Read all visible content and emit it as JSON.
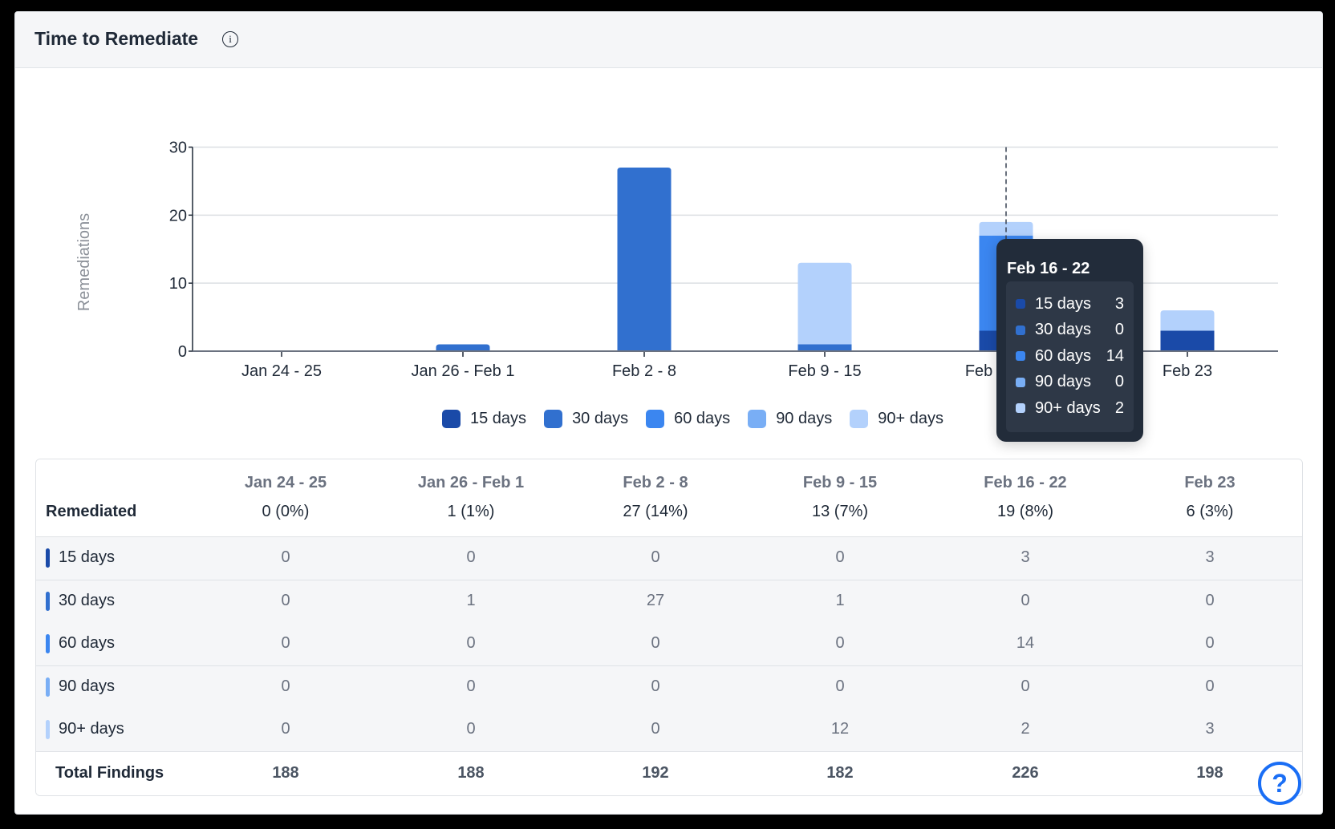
{
  "header": {
    "title": "Time to Remediate",
    "info_icon": "info-icon"
  },
  "chart_data": {
    "type": "bar",
    "stacked": true,
    "title": "",
    "xlabel": "",
    "ylabel": "Remediations",
    "ylim": [
      0,
      30
    ],
    "yticks": [
      "0",
      "10",
      "20",
      "30"
    ],
    "grid": true,
    "legend_placement": "bottom",
    "categories": [
      "Jan 24 - 25",
      "Jan 26 - Feb 1",
      "Feb 2 - 8",
      "Feb 9 - 15",
      "Feb 16 - 22",
      "Feb 23"
    ],
    "series": [
      {
        "name": "15 days",
        "color": "#1a4aa8",
        "values": [
          0,
          0,
          0,
          0,
          3,
          3
        ]
      },
      {
        "name": "30 days",
        "color": "#3170cf",
        "values": [
          0,
          1,
          27,
          1,
          0,
          0
        ]
      },
      {
        "name": "60 days",
        "color": "#3b86f0",
        "values": [
          0,
          0,
          0,
          0,
          14,
          0
        ]
      },
      {
        "name": "90 days",
        "color": "#79aef5",
        "values": [
          0,
          0,
          0,
          0,
          0,
          0
        ]
      },
      {
        "name": "90+ days",
        "color": "#b3d1fc",
        "values": [
          0,
          0,
          0,
          12,
          2,
          3
        ]
      }
    ],
    "hovered_category": "Feb 16 - 22"
  },
  "tooltip": {
    "title": "Feb 16 - 22",
    "rows": [
      {
        "label": "15 days",
        "value": "3"
      },
      {
        "label": "30 days",
        "value": "0"
      },
      {
        "label": "60 days",
        "value": "14"
      },
      {
        "label": "90 days",
        "value": "0"
      },
      {
        "label": "90+ days",
        "value": "2"
      }
    ]
  },
  "table": {
    "row_header": "Remediated",
    "columns": [
      {
        "label": "Jan 24 - 25",
        "remediated": "0 (0%)"
      },
      {
        "label": "Jan 26 - Feb 1",
        "remediated": "1 (1%)"
      },
      {
        "label": "Feb 2 - 8",
        "remediated": "27 (14%)"
      },
      {
        "label": "Feb 9 - 15",
        "remediated": "13 (7%)"
      },
      {
        "label": "Feb 16 - 22",
        "remediated": "19 (8%)"
      },
      {
        "label": "Feb 23",
        "remediated": "6 (3%)"
      }
    ],
    "rows": [
      {
        "label": "15 days",
        "values": [
          "0",
          "0",
          "0",
          "0",
          "3",
          "3"
        ]
      },
      {
        "label": "30 days",
        "values": [
          "0",
          "1",
          "27",
          "1",
          "0",
          "0"
        ]
      },
      {
        "label": "60 days",
        "values": [
          "0",
          "0",
          "0",
          "0",
          "14",
          "0"
        ]
      },
      {
        "label": "90 days",
        "values": [
          "0",
          "0",
          "0",
          "0",
          "0",
          "0"
        ]
      },
      {
        "label": "90+ days",
        "values": [
          "0",
          "0",
          "0",
          "12",
          "2",
          "3"
        ]
      }
    ],
    "total_label": "Total Findings",
    "totals": [
      "188",
      "188",
      "192",
      "182",
      "226",
      "198"
    ]
  },
  "help": {
    "label": "?",
    "icon": "help-icon"
  }
}
